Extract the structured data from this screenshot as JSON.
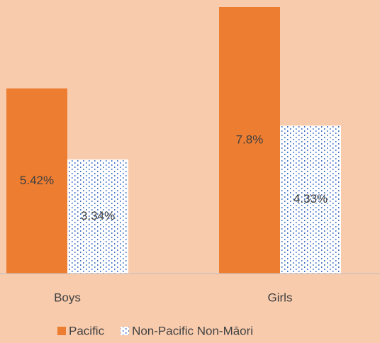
{
  "chart_data": {
    "type": "bar",
    "categories": [
      "Boys",
      "Girls"
    ],
    "series": [
      {
        "name": "Pacific",
        "color": "#ed7d31",
        "values": [
          5.42,
          7.8
        ],
        "value_labels": [
          "5.42%",
          "7.8%"
        ]
      },
      {
        "name": "Non-Pacific Non-Māori",
        "color": "#4472c4",
        "pattern": "dotted",
        "values": [
          3.34,
          4.33
        ],
        "value_labels": [
          "3.34%",
          "4.33%"
        ]
      }
    ],
    "legend": "bottom"
  }
}
